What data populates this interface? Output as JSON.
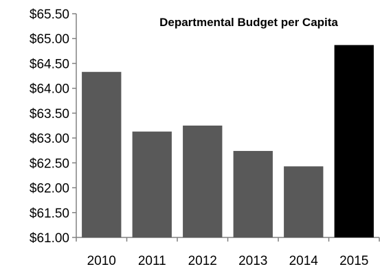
{
  "chart_data": {
    "type": "bar",
    "title": "Departmental Budget per Capita",
    "xlabel": "",
    "ylabel": "",
    "categories": [
      "2010",
      "2011",
      "2012",
      "2013",
      "2014",
      "2015"
    ],
    "values": [
      64.33,
      63.13,
      63.25,
      62.74,
      62.43,
      64.87
    ],
    "ylim": [
      61.0,
      65.5
    ],
    "y_ticks": [
      61.0,
      61.5,
      62.0,
      62.5,
      63.0,
      63.5,
      64.0,
      64.5,
      65.0,
      65.5
    ],
    "y_tick_labels": [
      "$61.00",
      "$61.50",
      "$62.00",
      "$62.50",
      "$63.00",
      "$63.50",
      "$64.00",
      "$64.50",
      "$65.00",
      "$65.50"
    ],
    "bar_colors": [
      "#595959",
      "#595959",
      "#595959",
      "#595959",
      "#595959",
      "#000000"
    ],
    "grid": false,
    "legend": "none"
  }
}
